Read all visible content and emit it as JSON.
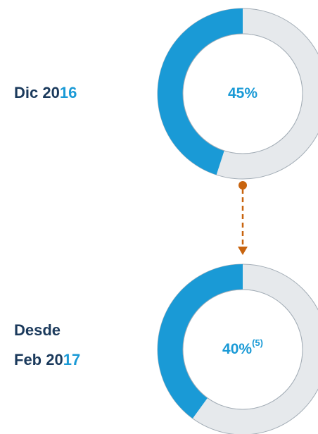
{
  "chart_data": [
    {
      "type": "donut",
      "label_parts": [
        "Dic 20",
        "16"
      ],
      "values": [
        45
      ],
      "value_labels": [
        "45%"
      ],
      "color": "#1a9ad6"
    },
    {
      "type": "donut",
      "label_parts": [
        "Desde",
        "Feb 20",
        "17"
      ],
      "values": [
        40
      ],
      "value_labels": [
        "40%"
      ],
      "footnote": "(5)",
      "color": "#1a9ad6"
    }
  ]
}
